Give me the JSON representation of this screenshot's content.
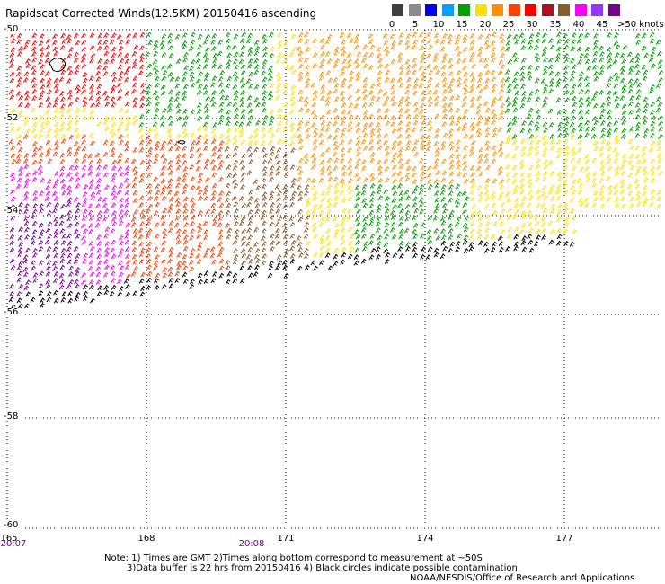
{
  "title": "Rapidscat Corrected Winds(12.5KM) 20150416 ascending",
  "scale": {
    "labels": [
      "0",
      "5",
      "10",
      "15",
      "20",
      "25",
      "30",
      "35",
      "40",
      "45",
      ">50 knots"
    ],
    "colors": [
      "#404040",
      "#8c8c8c",
      "#0000ff",
      "#00a0ff",
      "#00a000",
      "#ffe000",
      "#ff9000",
      "#ff4000",
      "#ff0000",
      "#b01020",
      "#8b5a2b",
      "#ff00ff",
      "#9b30ff",
      "#7a0094"
    ]
  },
  "axes": {
    "lat_labels": [
      "-50",
      "-52",
      "-54",
      "-56",
      "-58",
      "-60"
    ],
    "lon_labels": [
      "165",
      "168",
      "171",
      "174",
      "177"
    ],
    "time_labels": [
      "20:07",
      "20:08"
    ]
  },
  "notes": {
    "line1": "Note: 1) Times are GMT 2)Times along bottom correspond to measurement at ~50S",
    "line2": "3)Data buffer is 22 hrs from 20150416 4) Black circles indicate possible contamination",
    "credit": "NOAA/NESDIS/Office of Research and Applications"
  }
}
